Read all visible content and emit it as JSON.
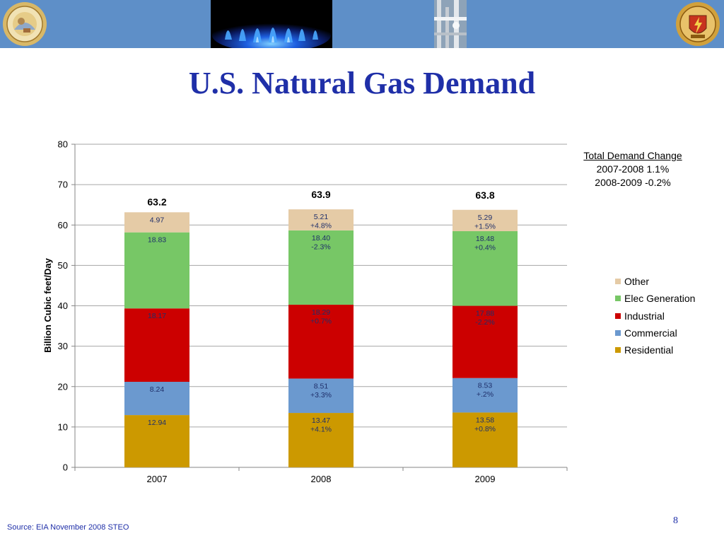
{
  "header": {
    "left_seal_icon": "california-energy-commission-seal-icon",
    "right_seal_icon": "california-puc-seal-icon",
    "photo_1": "gas-flame-photo",
    "photo_2": "gas-pipeline-photo"
  },
  "slide": {
    "title": "U.S. Natural Gas Demand",
    "source": "Source: EIA November 2008 STEO",
    "page_number": "8"
  },
  "demand_change": {
    "heading": "Total Demand Change",
    "lines": [
      "2007-2008 1.1%",
      "2008-2009 -0.2%"
    ]
  },
  "chart_data": {
    "type": "bar",
    "stacked": true,
    "categories": [
      "2007",
      "2008",
      "2009"
    ],
    "ylabel": "Billion Cubic feet/Day",
    "xlabel": "",
    "ylim": [
      0,
      80
    ],
    "yticks": [
      0,
      10,
      20,
      30,
      40,
      50,
      60,
      70,
      80
    ],
    "grid": true,
    "legend_position": "right",
    "totals": [
      "63.2",
      "63.9",
      "63.8"
    ],
    "series": [
      {
        "name": "Residential",
        "color": "#cc9900",
        "values": [
          12.94,
          13.47,
          13.58
        ],
        "labels": [
          [
            "12.94"
          ],
          [
            "13.47",
            "+4.1%"
          ],
          [
            "13.58",
            "+0.8%"
          ]
        ]
      },
      {
        "name": "Commercial",
        "color": "#6b99cf",
        "values": [
          8.24,
          8.51,
          8.53
        ],
        "labels": [
          [
            "8.24"
          ],
          [
            "8.51",
            "+3.3%"
          ],
          [
            "8.53",
            "+.2%"
          ]
        ]
      },
      {
        "name": "Industrial",
        "color": "#cc0000",
        "values": [
          18.17,
          18.29,
          17.88
        ],
        "labels": [
          [
            "18.17"
          ],
          [
            "18.29",
            "+0.7%"
          ],
          [
            "17.88",
            "-2.2%"
          ]
        ]
      },
      {
        "name": "Elec Generation",
        "color": "#77c766",
        "values": [
          18.83,
          18.4,
          18.48
        ],
        "labels": [
          [
            "18.83"
          ],
          [
            "18.40",
            "-2.3%"
          ],
          [
            "18.48",
            "+0.4%"
          ]
        ]
      },
      {
        "name": "Other",
        "color": "#e5cba6",
        "values": [
          4.97,
          5.21,
          5.29
        ],
        "labels": [
          [
            "4.97"
          ],
          [
            "5.21",
            "+4.8%"
          ],
          [
            "5.29",
            "+1.5%"
          ]
        ]
      }
    ]
  }
}
